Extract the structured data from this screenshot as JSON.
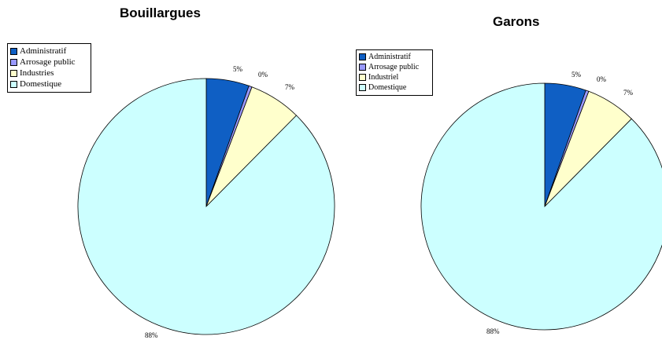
{
  "chart_data": [
    {
      "type": "pie",
      "title": "Bouillargues",
      "labels": [
        "Administratif",
        "Arrosage public",
        "Industries",
        "Domestique"
      ],
      "values": [
        5,
        0,
        7,
        88
      ],
      "slice_percents": [
        5.4,
        0.4,
        6.6,
        87.6
      ],
      "data_labels": [
        "5%",
        "0%",
        "7%",
        "88%"
      ],
      "colors": [
        "#0F5FC4",
        "#9999FF",
        "#FFFFCC",
        "#CCFFFF"
      ],
      "legend": "top-left"
    },
    {
      "type": "pie",
      "title": "Garons",
      "labels": [
        "Administratif",
        "Arrosage public",
        "Industriel",
        "Domestique"
      ],
      "values": [
        5,
        0,
        7,
        88
      ],
      "slice_percents": [
        5.4,
        0.4,
        6.6,
        87.6
      ],
      "data_labels": [
        "5%",
        "0%",
        "7%",
        "88%"
      ],
      "colors": [
        "#0F5FC4",
        "#9999FF",
        "#FFFFCC",
        "#CCFFFF"
      ],
      "legend": "top-left"
    }
  ]
}
